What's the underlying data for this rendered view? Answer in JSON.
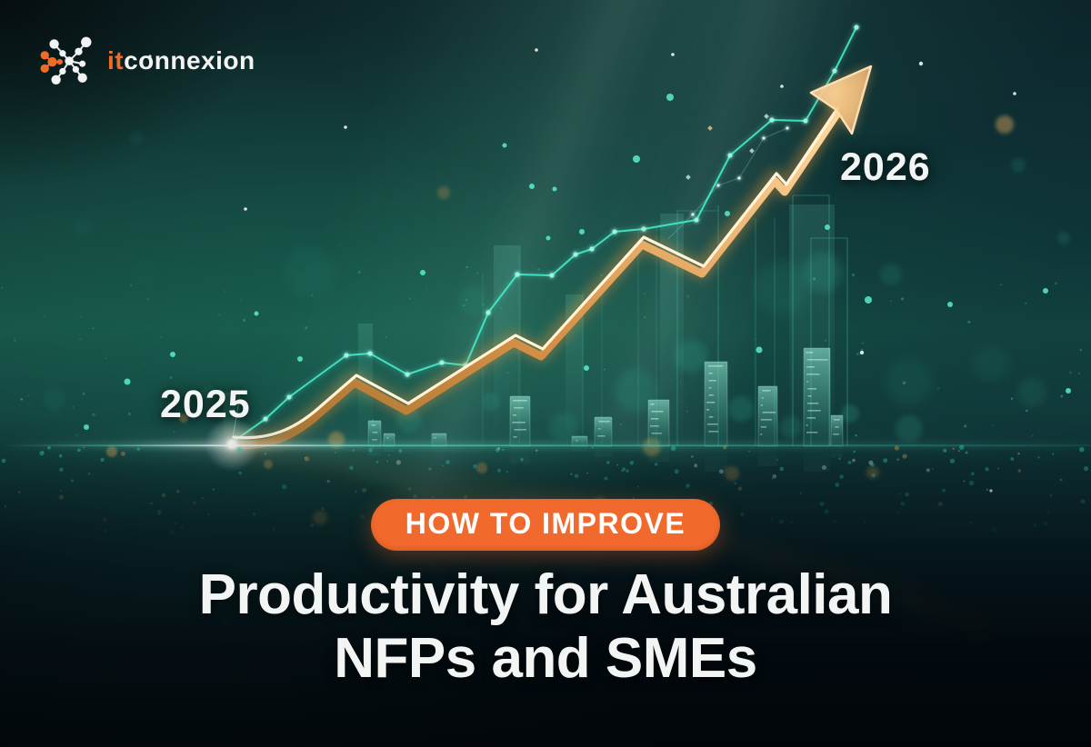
{
  "logo": {
    "icon": "network-molecule-icon",
    "text_orange": "it",
    "text_white": "connexion"
  },
  "chart_labels": {
    "start_year": "2025",
    "end_year": "2026"
  },
  "headline": {
    "badge": "HOW TO IMPROVE",
    "title_line1": "Productivity for Australian",
    "title_line2": "NFPs and SMEs"
  },
  "colors": {
    "accent_orange": "#F1692C",
    "logo_orange": "#F06B26",
    "teal_line": "#46ECCB",
    "gold_line": "#FFD9A0",
    "title_white": "#F3F5F4",
    "background_teal": "#175346",
    "background_deep": "#04121A"
  }
}
